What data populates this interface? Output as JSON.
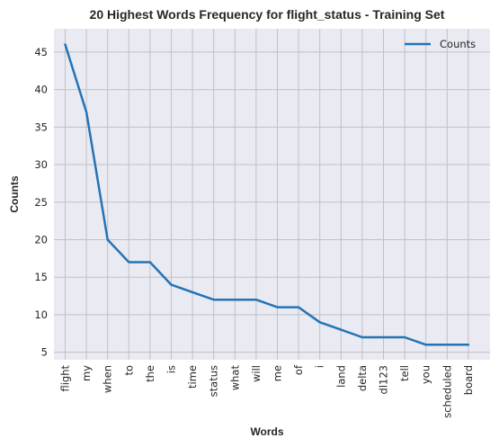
{
  "chart_data": {
    "type": "line",
    "title": "20 Highest Words Frequency for flight_status - Training Set",
    "xlabel": "Words",
    "ylabel": "Counts",
    "categories": [
      "flight",
      "my",
      "when",
      "to",
      "the",
      "is",
      "time",
      "status",
      "what",
      "will",
      "me",
      "of",
      "i",
      "land",
      "delta",
      "dl123",
      "tell",
      "you",
      "scheduled",
      "board"
    ],
    "series": [
      {
        "name": "Counts",
        "values": [
          46,
          37,
          20,
          17,
          17,
          14,
          13,
          12,
          12,
          12,
          11,
          11,
          9,
          8,
          7,
          7,
          7,
          6,
          6,
          6
        ],
        "color": "#2374b6"
      }
    ],
    "ylim": [
      4.0,
      48.1
    ],
    "yticks": [
      5,
      10,
      15,
      20,
      25,
      30,
      35,
      40,
      45
    ],
    "grid": true,
    "legend": "top-right",
    "background": "#eaeaf2",
    "grid_color": "#c0c0c8"
  }
}
